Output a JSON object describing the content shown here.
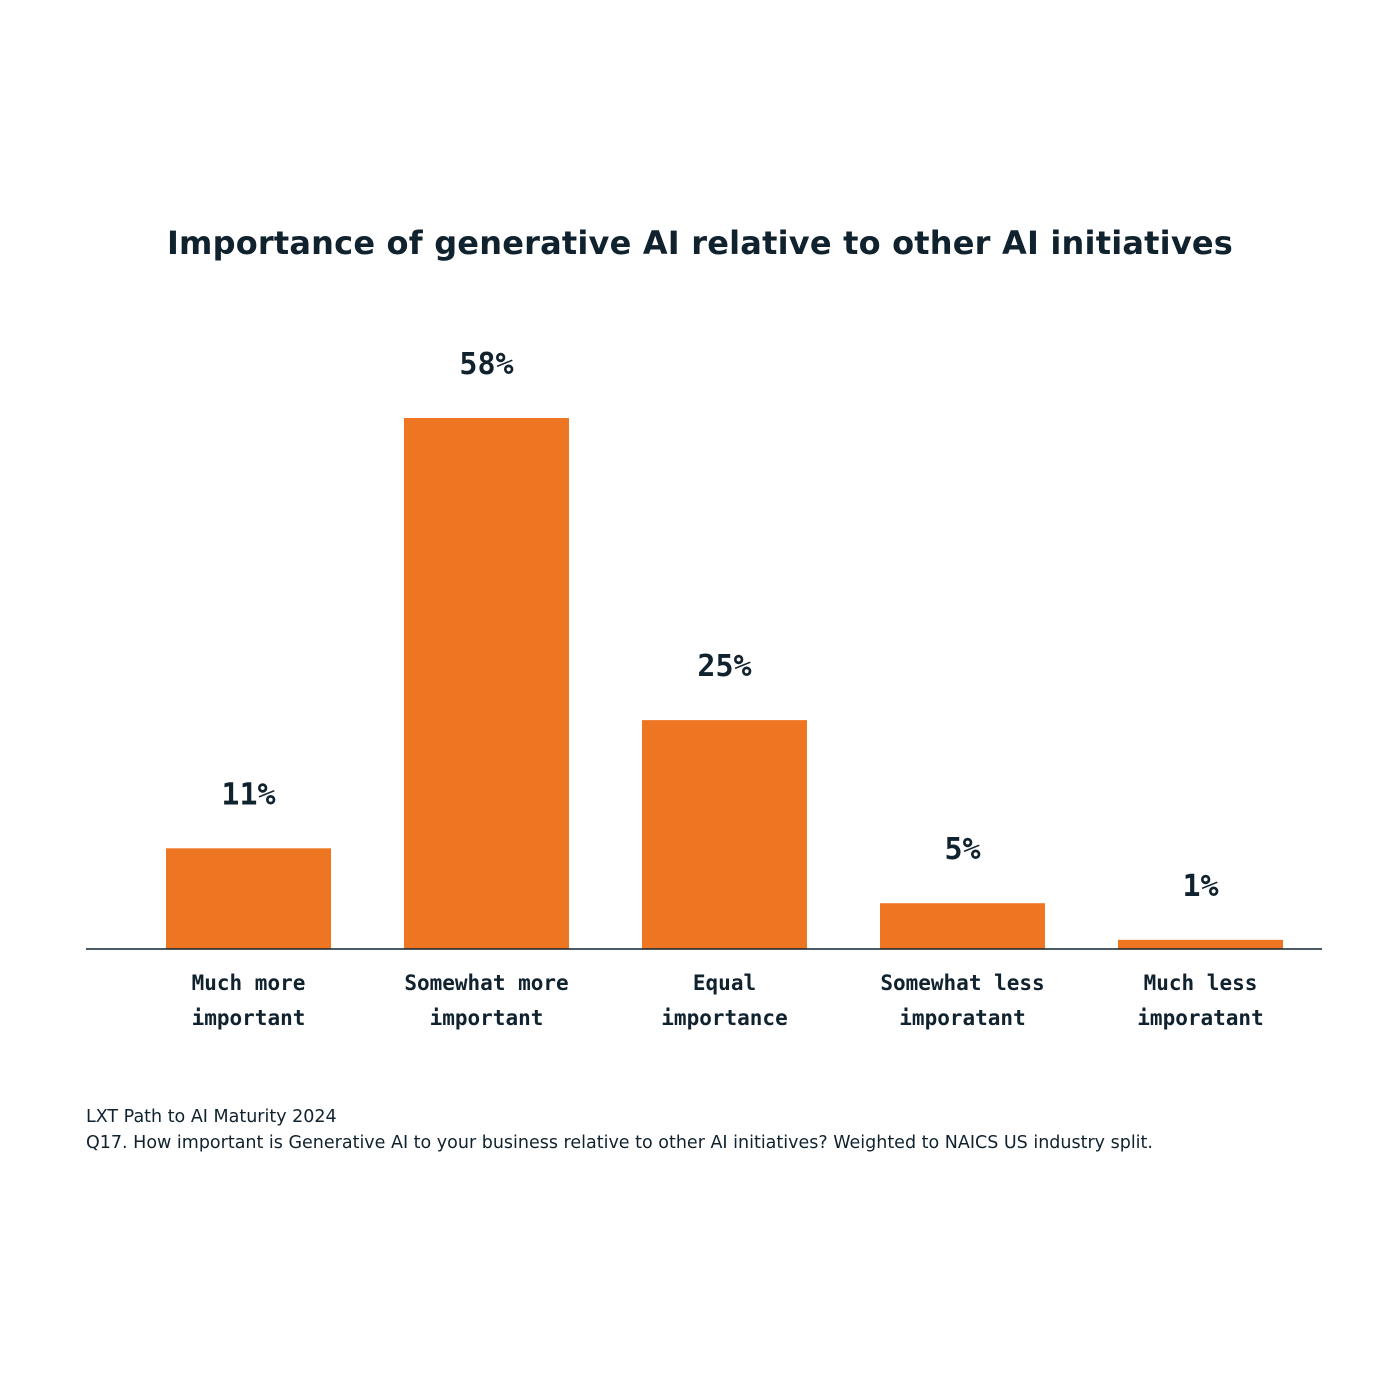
{
  "chart_data": {
    "type": "bar",
    "title": "Importance of generative AI relative to other AI initiatives",
    "categories": [
      [
        "Much more",
        "important"
      ],
      [
        "Somewhat more",
        "important"
      ],
      [
        "Equal",
        "importance"
      ],
      [
        "Somewhat less",
        "imporatant"
      ],
      [
        "Much less",
        "imporatant"
      ]
    ],
    "values": [
      11,
      58,
      25,
      5,
      1
    ],
    "data_labels": [
      "11%",
      "58%",
      "25%",
      "5%",
      "1%"
    ],
    "unit": "%",
    "ylim": [
      0,
      58
    ],
    "grid": false,
    "legend": "none",
    "bar_color": "#ee7623",
    "axis_color": "#10222e"
  },
  "footnotes": {
    "source": "LXT Path to AI Maturity 2024",
    "question": "Q17. How important is Generative AI to your business relative to other AI initiatives? Weighted to NAICS US industry split."
  }
}
